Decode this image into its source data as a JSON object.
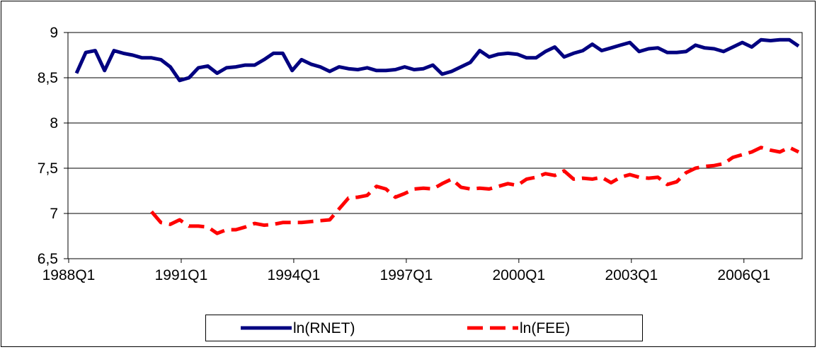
{
  "chart_data": {
    "type": "line",
    "categories": [
      "1988Q1",
      null,
      null,
      null,
      null,
      null,
      null,
      null,
      null,
      null,
      null,
      null,
      "1991Q1",
      null,
      null,
      null,
      null,
      null,
      null,
      null,
      null,
      null,
      null,
      null,
      "1994Q1",
      null,
      null,
      null,
      null,
      null,
      null,
      null,
      null,
      null,
      null,
      null,
      "1997Q1",
      null,
      null,
      null,
      null,
      null,
      null,
      null,
      null,
      null,
      null,
      null,
      "2000Q1",
      null,
      null,
      null,
      null,
      null,
      null,
      null,
      null,
      null,
      null,
      null,
      "2003Q1",
      null,
      null,
      null,
      null,
      null,
      null,
      null,
      null,
      null,
      null,
      null,
      "2006Q1",
      null,
      null,
      null,
      null,
      null
    ],
    "series": [
      {
        "name": "ln(RNET)",
        "color": "#000080",
        "dash": false,
        "values": [
          8.55,
          8.78,
          8.8,
          8.58,
          8.8,
          8.77,
          8.75,
          8.72,
          8.72,
          8.7,
          8.62,
          8.47,
          8.5,
          8.61,
          8.63,
          8.55,
          8.61,
          8.62,
          8.64,
          8.64,
          8.7,
          8.77,
          8.77,
          8.58,
          8.7,
          8.65,
          8.62,
          8.57,
          8.62,
          8.6,
          8.59,
          8.61,
          8.58,
          8.58,
          8.59,
          8.62,
          8.59,
          8.6,
          8.64,
          8.54,
          8.57,
          8.62,
          8.67,
          8.8,
          8.73,
          8.76,
          8.77,
          8.76,
          8.72,
          8.72,
          8.79,
          8.84,
          8.73,
          8.77,
          8.8,
          8.87,
          8.8,
          8.83,
          8.86,
          8.89,
          8.79,
          8.82,
          8.83,
          8.78,
          8.78,
          8.79,
          8.86,
          8.83,
          8.82,
          8.79,
          8.84,
          8.89,
          8.84,
          8.92,
          8.91,
          8.92,
          8.92,
          8.85
        ]
      },
      {
        "name": "ln(FEE)",
        "color": "#ff0000",
        "dash": true,
        "values": [
          null,
          null,
          null,
          null,
          null,
          null,
          null,
          null,
          7.02,
          6.9,
          6.88,
          6.93,
          6.86,
          6.86,
          6.85,
          6.78,
          6.82,
          6.82,
          6.85,
          6.89,
          6.87,
          6.88,
          6.9,
          6.9,
          6.9,
          6.91,
          6.92,
          6.93,
          7.05,
          7.17,
          7.18,
          7.2,
          7.3,
          7.27,
          7.18,
          7.22,
          7.27,
          7.28,
          7.27,
          7.33,
          7.38,
          7.29,
          7.27,
          7.28,
          7.27,
          7.3,
          7.33,
          7.31,
          7.38,
          7.4,
          7.44,
          7.42,
          7.47,
          7.38,
          7.39,
          7.38,
          7.4,
          7.34,
          7.4,
          7.43,
          7.4,
          7.39,
          7.4,
          7.32,
          7.35,
          7.45,
          7.5,
          7.52,
          7.53,
          7.55,
          7.62,
          7.65,
          7.68,
          7.73,
          7.7,
          7.68,
          7.73,
          7.68
        ]
      }
    ],
    "ylim": [
      6.5,
      9
    ],
    "yticks": [
      {
        "value": 6.5,
        "label": "6,5"
      },
      7,
      {
        "value": 7.5,
        "label": "7,5"
      },
      8,
      {
        "value": 8.5,
        "label": "8,5"
      },
      9
    ],
    "grid": true,
    "legend": "bottom"
  }
}
